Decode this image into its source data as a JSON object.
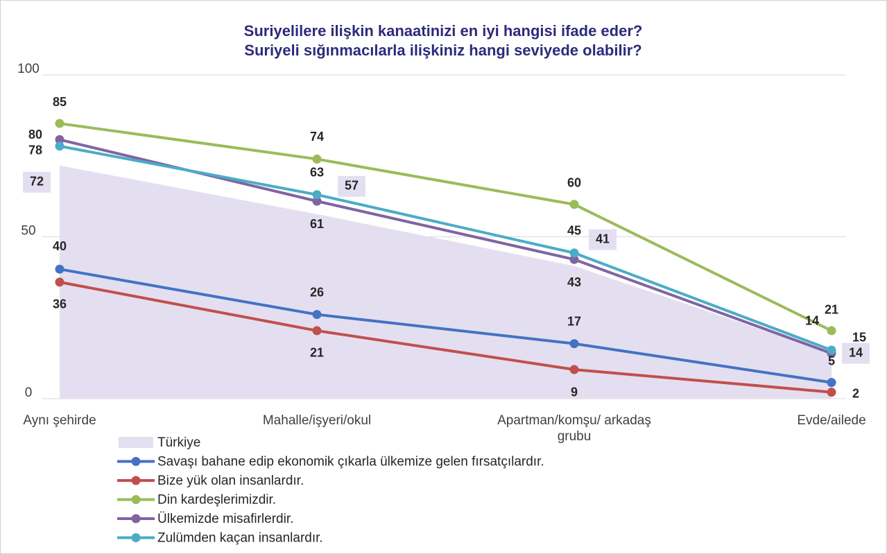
{
  "chart_data": {
    "type": "line",
    "title": "Suriyelilere ilişkin kanaatinizi en iyi hangisi ifade eder?",
    "subtitle": "Suriyeli sığınmacılarla ilişkiniz hangi seviyede olabilir?",
    "categories": [
      "Aynı şehirde",
      "Mahalle/işyeri/okul",
      "Apartman/komşu/ arkadaş grubu",
      "Evde/ailede"
    ],
    "ylim": [
      0,
      100
    ],
    "yticks": [
      0,
      50,
      100
    ],
    "grid": true,
    "series": [
      {
        "name": "Türkiye",
        "type": "area",
        "color": "#e4dff0",
        "values": [
          72,
          57,
          41,
          14
        ]
      },
      {
        "name": "Savaşı bahane edip ekonomik çıkarla ülkemize gelen fırsatçılardır.",
        "color": "#4472c4",
        "values": [
          40,
          26,
          17,
          5
        ]
      },
      {
        "name": "Bize yük olan insanlardır.",
        "color": "#c0504d",
        "values": [
          36,
          21,
          9,
          2
        ]
      },
      {
        "name": "Din kardeşlerimizdir.",
        "color": "#9bbb59",
        "values": [
          85,
          74,
          60,
          21
        ]
      },
      {
        "name": "Ülkemizde misafirlerdir.",
        "color": "#8064a2",
        "values": [
          80,
          61,
          43,
          14
        ]
      },
      {
        "name": "Zulümden kaçan insanlardır.",
        "color": "#4bacc6",
        "values": [
          78,
          63,
          45,
          15
        ]
      }
    ]
  }
}
